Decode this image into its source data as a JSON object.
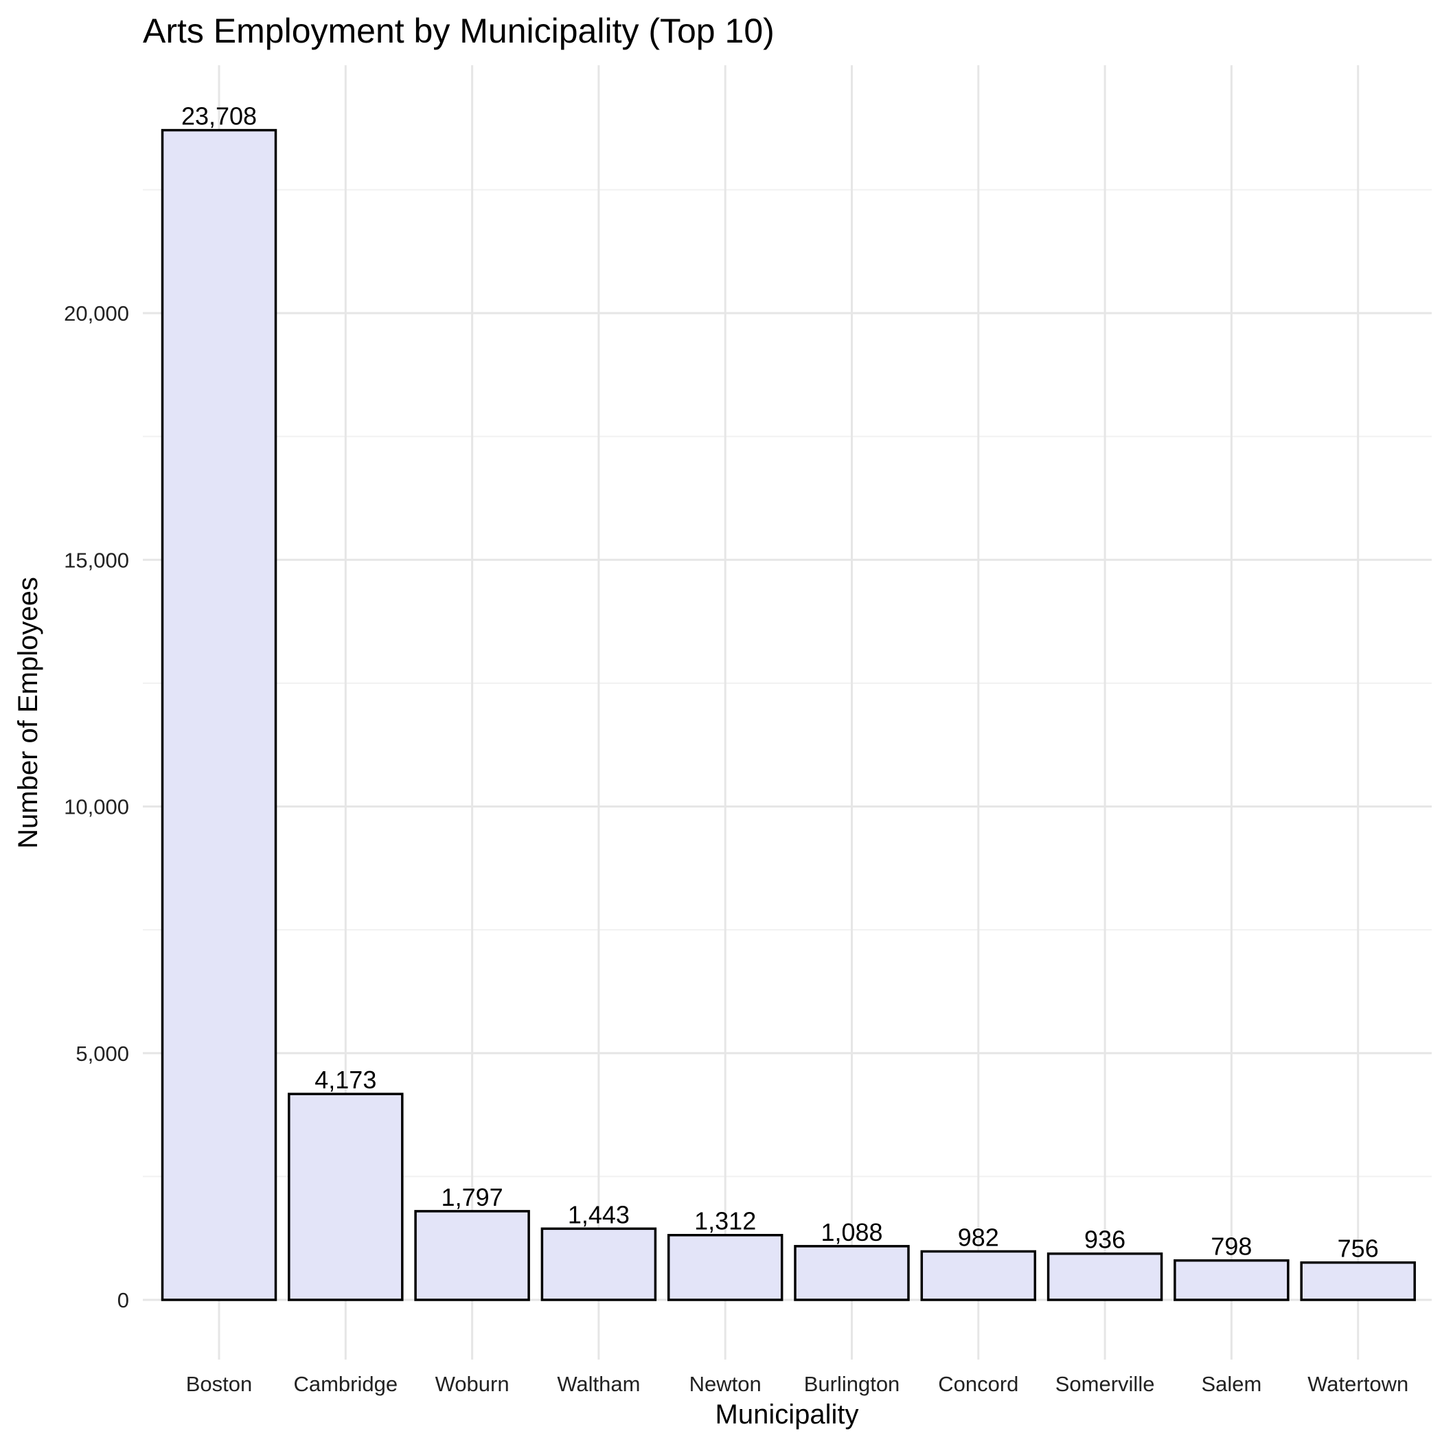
{
  "chart_data": {
    "type": "bar",
    "title": "Arts Employment by Municipality (Top 10)",
    "xlabel": "Municipality",
    "ylabel": "Number of Employees",
    "categories": [
      "Boston",
      "Cambridge",
      "Woburn",
      "Waltham",
      "Newton",
      "Burlington",
      "Concord",
      "Somerville",
      "Salem",
      "Watertown"
    ],
    "values": [
      23708,
      4173,
      1797,
      1443,
      1312,
      1088,
      982,
      936,
      798,
      756
    ],
    "data_labels": [
      "23,708",
      "4,173",
      "1,797",
      "1,443",
      "1,312",
      "1,088",
      "982",
      "936",
      "798",
      "756"
    ],
    "y_ticks": [
      0,
      5000,
      10000,
      15000,
      20000
    ],
    "y_tick_labels": [
      "0",
      "5,000",
      "10,000",
      "15,000",
      "20,000"
    ],
    "ylim": [
      0,
      24900
    ],
    "grid": true,
    "legend": "none",
    "colors": {
      "bar_fill": "#e3e4f8",
      "bar_stroke": "#000000"
    }
  }
}
